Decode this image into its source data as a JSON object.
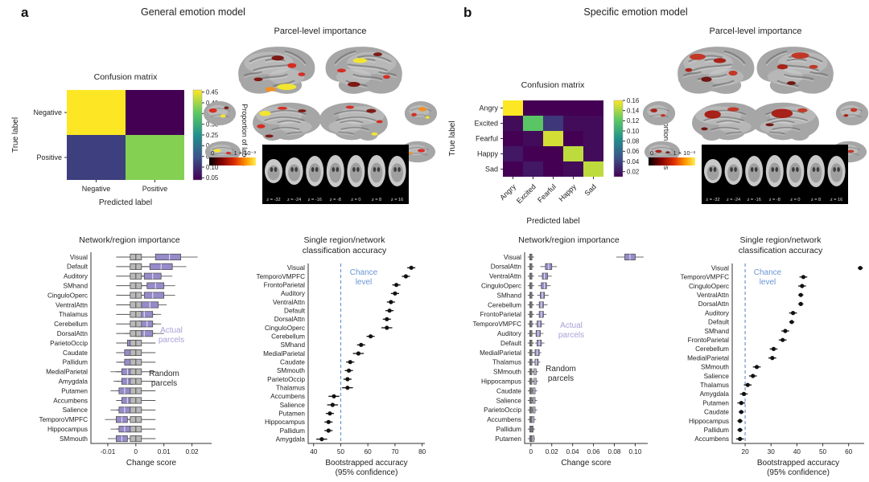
{
  "figure": {
    "panels": [
      {
        "label": "a",
        "title": "General emotion model",
        "parcel": {
          "title": "Parcel-level importance",
          "colorbar_zero": "0",
          "colorbar_max": "1 × 10⁻³",
          "slices": [
            "z = -32",
            "z = -24",
            "z = -16",
            "z = -8",
            "z = 0",
            "z = 8",
            "z = 16"
          ],
          "palette": [
            "#7a120d",
            "#d7261b",
            "#f28e1c",
            "#f5e829"
          ]
        }
      },
      {
        "label": "b",
        "title": "Specific emotion model",
        "parcel": {
          "title": "Parcel-level importance",
          "colorbar_zero": "0",
          "colorbar_max": "1 × 10⁻³",
          "slices": [
            "z = -32",
            "z = -24",
            "z = -16",
            "z = -8",
            "z = 0",
            "z = 8",
            "z = 16"
          ],
          "palette": [
            "#6e0f0a",
            "#a81910",
            "#c3301f",
            "#e0491f"
          ]
        }
      }
    ]
  },
  "chart_data": [
    {
      "id": "conf-a",
      "type": "heatmap",
      "title": "Confusion matrix",
      "xlabel": "Predicted label",
      "ylabel": "True label",
      "labels": [
        "Negative",
        "Positive"
      ],
      "matrix": [
        [
          0.46,
          0.04
        ],
        [
          0.12,
          0.38
        ]
      ],
      "vmin": 0.04,
      "vmax": 0.46,
      "colorbar_label": "Proportion of labels",
      "colorbar_ticks": [
        0.05,
        0.1,
        0.15,
        0.2,
        0.25,
        0.3,
        0.35,
        0.4,
        0.45
      ]
    },
    {
      "id": "conf-b",
      "type": "heatmap",
      "title": "Confusion matrix",
      "xlabel": "Predicted label",
      "ylabel": "True label",
      "labels": [
        "Angry",
        "Excited",
        "Fearful",
        "Happy",
        "Sad"
      ],
      "matrix": [
        [
          0.16,
          0.01,
          0.01,
          0.01,
          0.01
        ],
        [
          0.015,
          0.12,
          0.035,
          0.015,
          0.015
        ],
        [
          0.01,
          0.015,
          0.15,
          0.01,
          0.015
        ],
        [
          0.02,
          0.01,
          0.01,
          0.145,
          0.015
        ],
        [
          0.01,
          0.02,
          0.01,
          0.015,
          0.145
        ]
      ],
      "vmin": 0.01,
      "vmax": 0.16,
      "colorbar_label": "Proportion of labels",
      "colorbar_ticks": [
        0.02,
        0.04,
        0.06,
        0.08,
        0.1,
        0.12,
        0.14,
        0.16
      ]
    },
    {
      "id": "box-a",
      "type": "box",
      "title": "Network/region importance",
      "xlabel": "Change score",
      "xlim": [
        -0.016,
        0.027
      ],
      "xtick_vals": [
        -0.01,
        0,
        0.01,
        0.02
      ],
      "xtick_labels": [
        "-0.01",
        "0",
        "0.01",
        "0.02"
      ],
      "legend": {
        "actual": "Actual\nparcels",
        "random": "Random\nparcels"
      },
      "categories": [
        "Visual",
        "Default",
        "Auditory",
        "SMhand",
        "CinguloOperc",
        "VentralAttn",
        "Thalamus",
        "Cerebellum",
        "DorsalAttn",
        "ParietoOccip",
        "Caudate",
        "Pallidum",
        "MedialParietal",
        "Amygdala",
        "Putamen",
        "Accumbens",
        "Salience",
        "TemporoVMPFC",
        "Hippocampus",
        "SMmouth"
      ],
      "actual": [
        [
          0.002,
          0.007,
          0.012,
          0.016,
          0.022
        ],
        [
          0.0,
          0.005,
          0.009,
          0.013,
          0.018
        ],
        [
          -0.001,
          0.003,
          0.006,
          0.009,
          0.013
        ],
        [
          0.0,
          0.004,
          0.007,
          0.01,
          0.014
        ],
        [
          -0.001,
          0.003,
          0.006,
          0.01,
          0.014
        ],
        [
          -0.002,
          0.002,
          0.005,
          0.008,
          0.011
        ],
        [
          -0.002,
          0.001,
          0.003,
          0.006,
          0.009
        ],
        [
          -0.002,
          0.001,
          0.004,
          0.006,
          0.009
        ],
        [
          -0.004,
          0.0,
          0.003,
          0.006,
          0.01
        ],
        [
          -0.006,
          -0.003,
          -0.001,
          0.001,
          0.003
        ],
        [
          -0.007,
          -0.004,
          -0.002,
          0.0,
          0.002
        ],
        [
          -0.006,
          -0.004,
          -0.002,
          0.0,
          0.002
        ],
        [
          -0.009,
          -0.005,
          -0.003,
          -0.001,
          0.001
        ],
        [
          -0.008,
          -0.005,
          -0.003,
          -0.001,
          0.001
        ],
        [
          -0.009,
          -0.006,
          -0.004,
          -0.002,
          0.0
        ],
        [
          -0.007,
          -0.005,
          -0.003,
          -0.001,
          0.001
        ],
        [
          -0.009,
          -0.006,
          -0.004,
          -0.002,
          0.0
        ],
        [
          -0.011,
          -0.007,
          -0.005,
          -0.003,
          -0.001
        ],
        [
          -0.009,
          -0.006,
          -0.004,
          -0.002,
          0.0
        ],
        [
          -0.01,
          -0.007,
          -0.005,
          -0.003,
          -0.001
        ]
      ],
      "random": [
        -0.007,
        -0.002,
        0,
        0.002,
        0.007
      ]
    },
    {
      "id": "box-b",
      "type": "box",
      "title": "Network/region importance",
      "xlabel": "Change score",
      "xlim": [
        -0.006,
        0.112
      ],
      "xtick_vals": [
        0,
        0.02,
        0.04,
        0.06,
        0.08,
        0.1
      ],
      "xtick_labels": [
        "0",
        "0.02",
        "0.04",
        "0.06",
        "0.08",
        "0.10"
      ],
      "legend": {
        "actual": "Actual\nparcels",
        "random": "Random\nparcels"
      },
      "categories": [
        "Visual",
        "DorsalAttn",
        "VentralAttn",
        "CinguloOperc",
        "SMhand",
        "Cerebellum",
        "FrontoParietal",
        "TemporoVMPFC",
        "Auditory",
        "Default",
        "MedialParietal",
        "Thalamus",
        "SMmouth",
        "Hippocampus",
        "Caudate",
        "Salience",
        "ParietoOccip",
        "Accumbens",
        "Pallidum",
        "Putamen"
      ],
      "actual": [
        [
          0.082,
          0.09,
          0.095,
          0.1,
          0.108
        ],
        [
          0.009,
          0.014,
          0.017,
          0.02,
          0.025
        ],
        [
          0.007,
          0.011,
          0.013,
          0.016,
          0.02
        ],
        [
          0.007,
          0.01,
          0.013,
          0.015,
          0.019
        ],
        [
          0.006,
          0.009,
          0.011,
          0.013,
          0.017
        ],
        [
          0.005,
          0.008,
          0.01,
          0.012,
          0.016
        ],
        [
          0.005,
          0.008,
          0.01,
          0.012,
          0.015
        ],
        [
          0.004,
          0.006,
          0.008,
          0.01,
          0.013
        ],
        [
          0.003,
          0.005,
          0.007,
          0.009,
          0.012
        ],
        [
          0.004,
          0.006,
          0.008,
          0.01,
          0.013
        ],
        [
          0.002,
          0.004,
          0.006,
          0.008,
          0.01
        ],
        [
          0.002,
          0.004,
          0.005,
          0.007,
          0.009
        ],
        [
          0.001,
          0.003,
          0.004,
          0.005,
          0.007
        ],
        [
          0.001,
          0.003,
          0.004,
          0.005,
          0.007
        ],
        [
          0.001,
          0.002,
          0.003,
          0.004,
          0.006
        ],
        [
          0.001,
          0.002,
          0.003,
          0.004,
          0.006
        ],
        [
          0.0,
          0.002,
          0.003,
          0.004,
          0.006
        ],
        [
          0.0,
          0.001,
          0.002,
          0.003,
          0.005
        ],
        [
          0.0,
          0.001,
          0.001,
          0.002,
          0.004
        ],
        [
          0.0,
          0.001,
          0.002,
          0.003,
          0.004
        ]
      ],
      "random": [
        -0.003,
        -0.001,
        0,
        0.001,
        0.003
      ]
    },
    {
      "id": "dots-a",
      "type": "dot",
      "title": "Single region/network\nclassification accuracy",
      "xlabel": "Bootstrapped accuracy\n(95% confidence)",
      "xlim": [
        38,
        81
      ],
      "xtick_vals": [
        40,
        50,
        60,
        70,
        80
      ],
      "xtick_labels": [
        "40",
        "50",
        "60",
        "70",
        "80"
      ],
      "chance": {
        "value": 50,
        "label": "Chance\nlevel"
      },
      "categories": [
        "Visual",
        "TemporoVMPFC",
        "FrontoParietal",
        "Auditory",
        "VentralAttn",
        "Default",
        "DorsalAttn",
        "CinguloOperc",
        "Cerebellum",
        "SMhand",
        "MedialParietal",
        "Caudate",
        "SMmouth",
        "ParietoOccip",
        "Thalamus",
        "Accumbens",
        "Salience",
        "Putamen",
        "Hippocampus",
        "Pallidum",
        "Amygdala"
      ],
      "values": [
        76,
        74,
        70.5,
        70,
        68.5,
        68,
        67,
        67,
        61,
        57.5,
        56.5,
        53.5,
        53,
        52.5,
        52.5,
        47.5,
        47,
        46,
        45.5,
        45.5,
        43
      ],
      "errors": [
        1.5,
        1.5,
        1.5,
        1.5,
        1.5,
        1.5,
        1.5,
        2,
        1.5,
        1.5,
        2,
        1.5,
        1.5,
        1.5,
        2,
        2,
        2,
        1.5,
        1.5,
        1.5,
        2
      ]
    },
    {
      "id": "dots-b",
      "type": "dot",
      "title": "Single region/network\nclassification accuracy",
      "xlabel": "Bootstrapped accuracy\n(95% confidence)",
      "xlim": [
        15,
        66
      ],
      "xtick_vals": [
        20,
        30,
        40,
        50,
        60
      ],
      "xtick_labels": [
        "20",
        "30",
        "40",
        "50",
        "60"
      ],
      "chance": {
        "value": 20,
        "label": "Chance\nlevel"
      },
      "categories": [
        "Visual",
        "TemporoVMPFC",
        "CinguloOperc",
        "VentralAttn",
        "DorsalAttn",
        "Auditory",
        "Default",
        "SMhand",
        "FrontoParietal",
        "Cerebellum",
        "MedialParietal",
        "SMmouth",
        "Salience",
        "Thalamus",
        "Amygdala",
        "Putamen",
        "Caudate",
        "Hippocampus",
        "Pallidum",
        "Accumbens"
      ],
      "values": [
        64.5,
        42.5,
        42,
        41.5,
        41.5,
        38.5,
        38,
        35.5,
        34.5,
        31,
        30.5,
        24.5,
        23,
        21,
        19.5,
        18.5,
        18.5,
        18,
        18,
        18
      ],
      "errors": [
        1,
        1.5,
        1.5,
        1,
        1,
        1.5,
        1,
        1.5,
        1.5,
        1.5,
        1.5,
        1.5,
        1.5,
        1.5,
        1.5,
        1.5,
        1,
        1,
        1,
        1.5
      ]
    }
  ],
  "colors": {
    "actual_parcel": "#978bca",
    "random_parcel": "#b9b9b9",
    "actual_label": "#a89fd8",
    "chance_blue": "#6a96d2",
    "dot": "#111111"
  }
}
